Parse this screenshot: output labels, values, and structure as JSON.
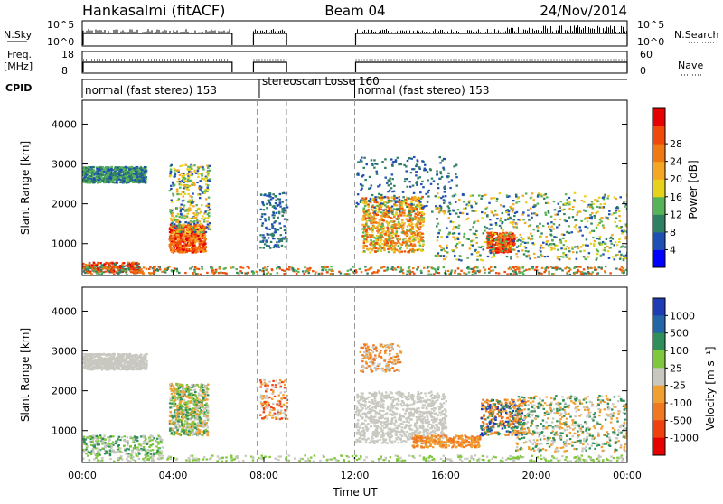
{
  "header": {
    "station": "Hankasalmi (fitACF)",
    "beam": "Beam 04",
    "date": "24/Nov/2014"
  },
  "strip_labels": {
    "nsky": "N.Sky",
    "nsky_top": "10^5",
    "nsky_bottom": "10^0",
    "nsearch": "N.Search",
    "nsearch_top": "10^5",
    "nsearch_bottom": "10^0",
    "freq_line1": "Freq.",
    "freq_line2": "[MHz]",
    "freq_top": "18",
    "freq_bottom": "8",
    "nave": "Nave",
    "nave_top": "60",
    "nave_bottom": "0",
    "cpid": "CPID"
  },
  "cpid_segments": [
    {
      "label": "normal (fast stereo) 153",
      "start_h": 0
    },
    {
      "label": "stereoscan Losse 160",
      "start_h": 7.8
    },
    {
      "label": "normal (fast stereo) 153",
      "start_h": 12.0
    }
  ],
  "colors": {
    "power_scale": [
      "#0000ff",
      "#1e4fb4",
      "#2f7f62",
      "#57b357",
      "#e6d21a",
      "#f5a623",
      "#f07a12",
      "#f04a0a",
      "#e60000"
    ],
    "velocity_scale": [
      "#1e3cb4",
      "#2366a6",
      "#2f8f5a",
      "#7fc83c",
      "#c8c8c0",
      "#f0a030",
      "#f07820",
      "#f04010",
      "#e60000"
    ]
  },
  "chart_data": [
    {
      "type": "heatmap",
      "panel": "power",
      "ylabel": "Slant Range [km]",
      "yticks": [
        "1000",
        "2000",
        "3000",
        "4000"
      ],
      "ylim": [
        200,
        4600
      ],
      "xlim_hours": [
        0,
        24
      ],
      "colorbar_label": "Power [dB]",
      "colorbar_ticks": [
        "4",
        "8",
        "12",
        "16",
        "20",
        "24",
        "28"
      ],
      "features": [
        {
          "start_h": 0.0,
          "end_h": 2.8,
          "range_km": [
            2550,
            2950
          ],
          "level": "8-12"
        },
        {
          "start_h": 3.8,
          "end_h": 5.5,
          "range_km": [
            800,
            2000
          ],
          "level": "24-30"
        },
        {
          "start_h": 12.3,
          "end_h": 15.0,
          "range_km": [
            800,
            2200
          ],
          "level": "16-28"
        },
        {
          "start_h": 17.8,
          "end_h": 19.0,
          "range_km": [
            800,
            1300
          ],
          "level": "24-30"
        }
      ]
    },
    {
      "type": "heatmap",
      "panel": "velocity",
      "ylabel": "Slant Range [km]",
      "yticks": [
        "1000",
        "2000",
        "3000",
        "4000"
      ],
      "ylim": [
        200,
        4600
      ],
      "xlim_hours": [
        0,
        24
      ],
      "colorbar_label": "Velocity [m s⁻¹]",
      "colorbar_ticks": [
        "1000",
        "500",
        "100",
        "25",
        "-25",
        "-100",
        "-500",
        "-1000"
      ],
      "xticks": [
        "00:00",
        "04:00",
        "08:00",
        "12:00",
        "16:00",
        "20:00",
        "00:00"
      ],
      "xlabel": "Time UT"
    }
  ]
}
